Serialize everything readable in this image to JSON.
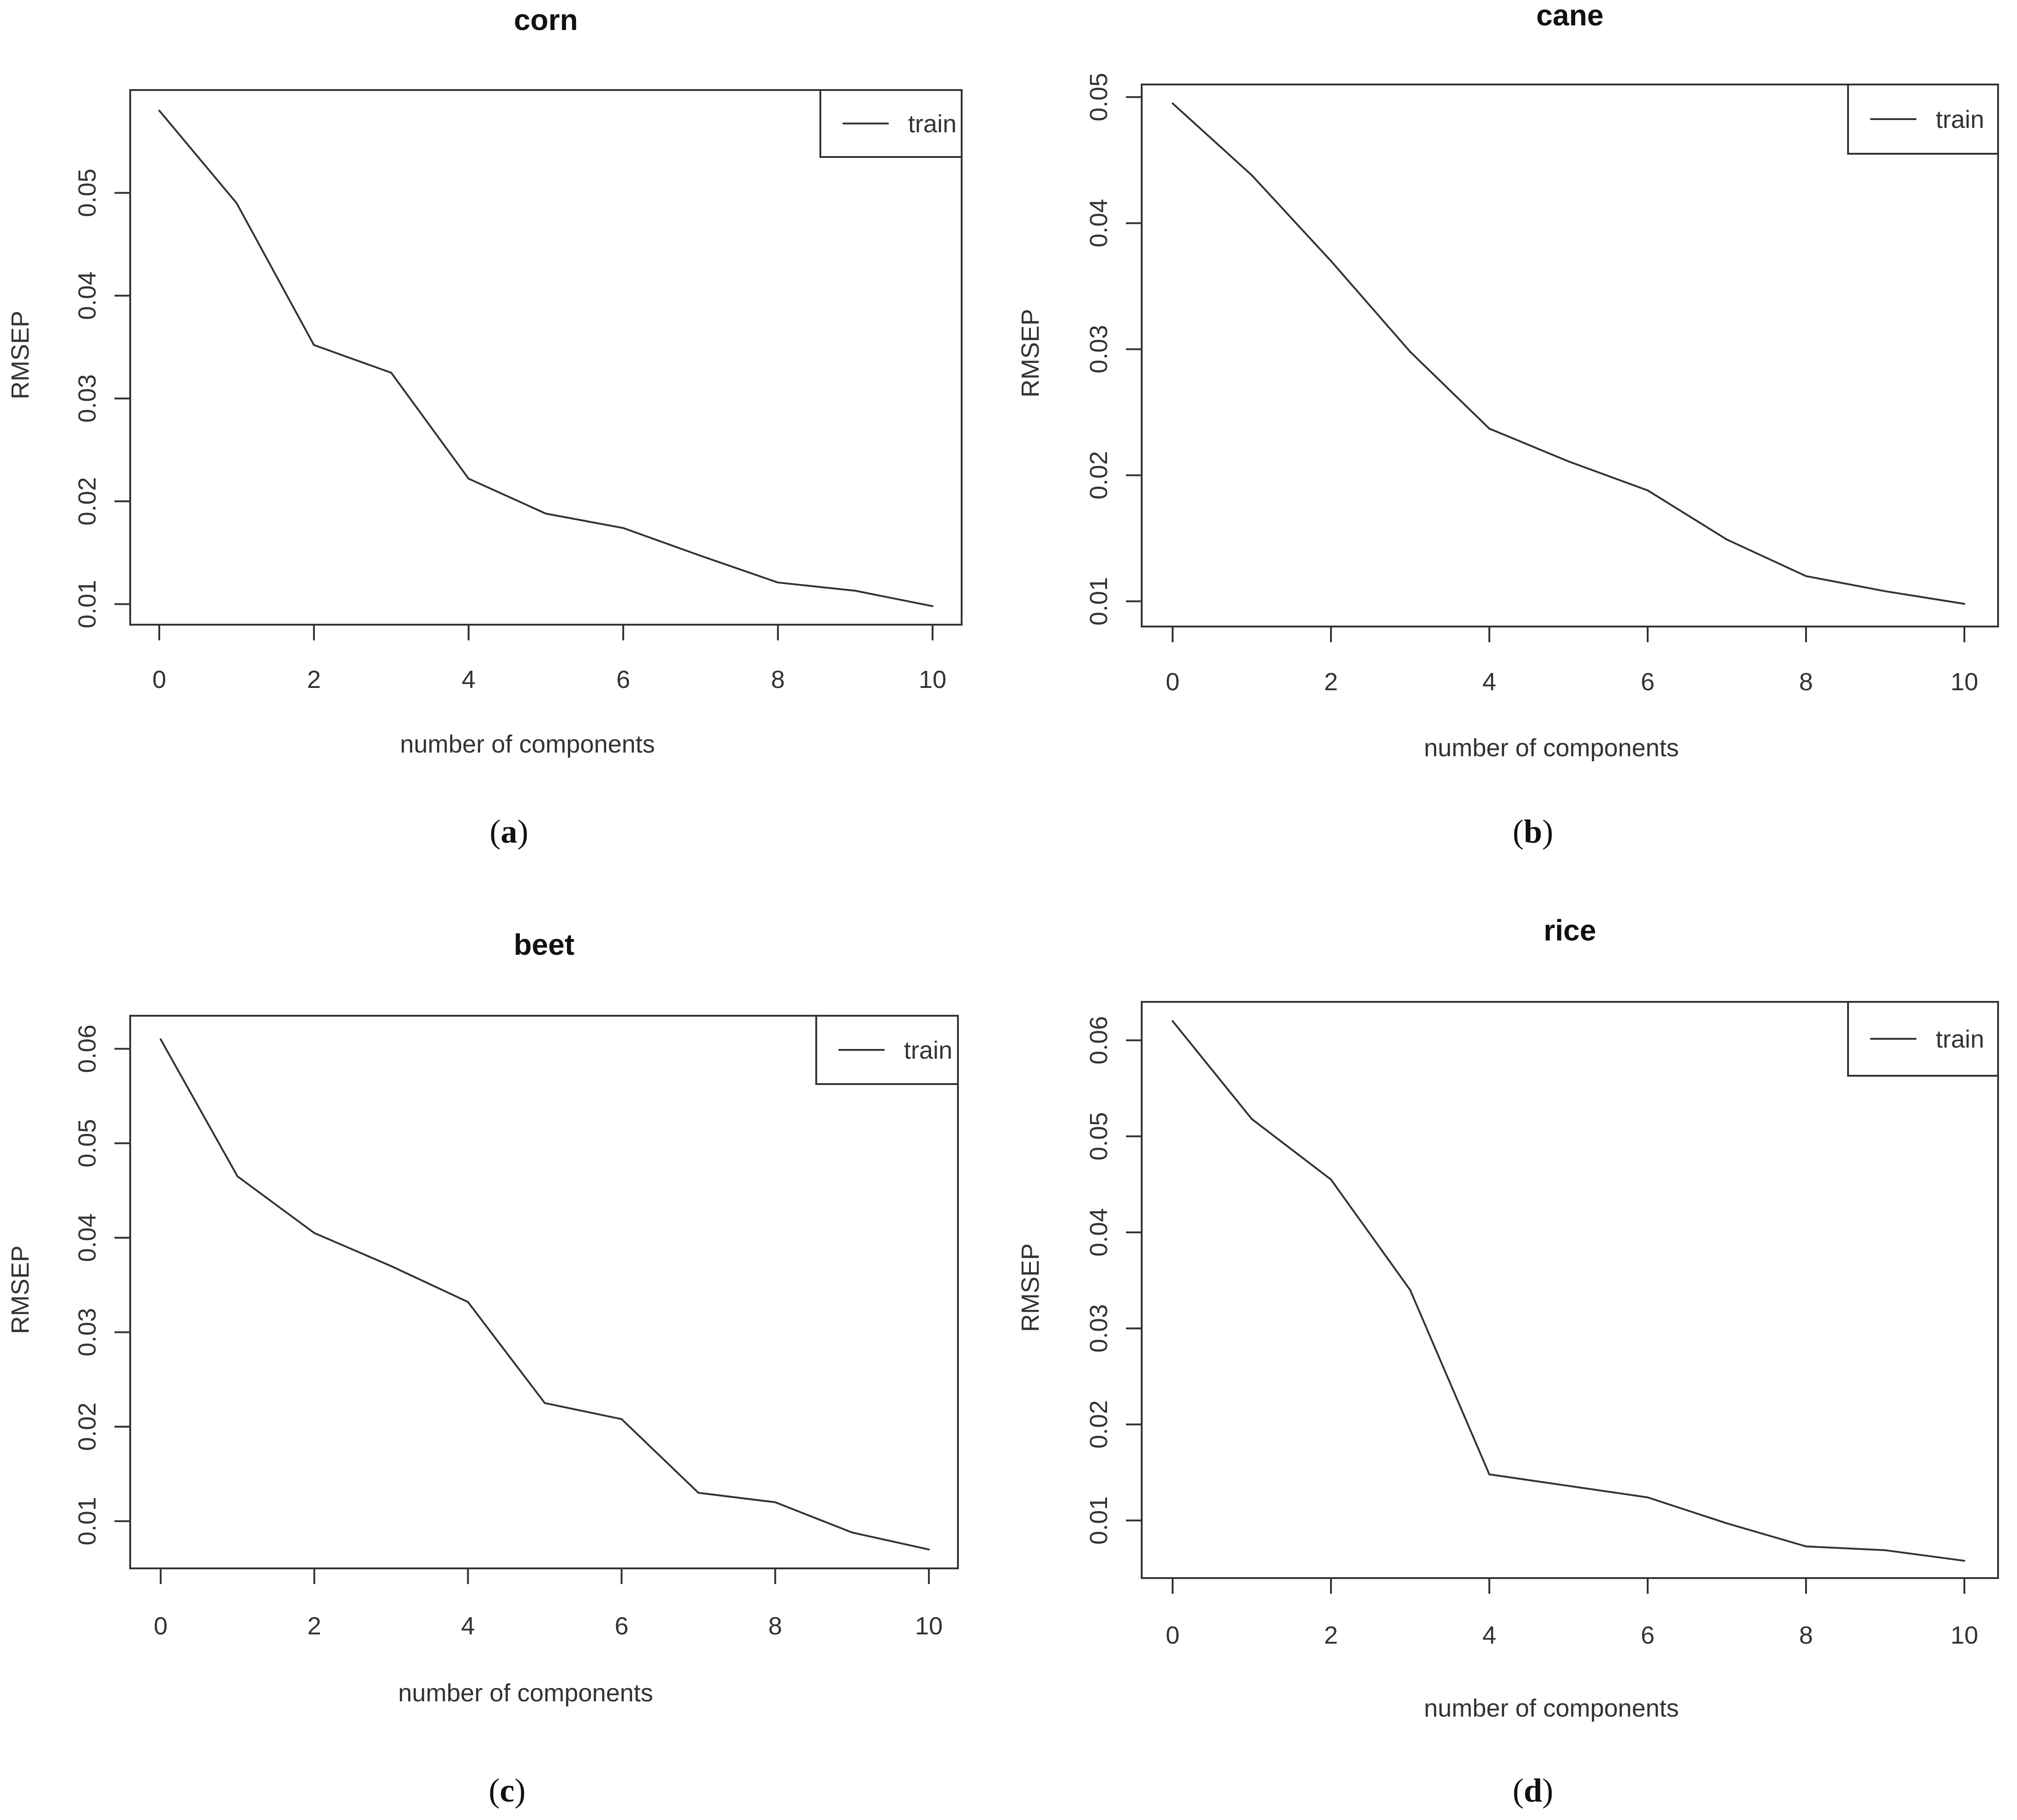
{
  "chart_data": [
    {
      "type": "line",
      "title": "corn",
      "xlabel": "number of components",
      "ylabel": "RMSEP",
      "caption": "a",
      "xlim": [
        0,
        10
      ],
      "ylim": [
        0.008,
        0.06
      ],
      "xticks": [
        0,
        2,
        4,
        6,
        8,
        10
      ],
      "xtick_labels": [
        "0",
        "2",
        "4",
        "6",
        "8",
        "10"
      ],
      "yticks": [
        0.01,
        0.02,
        0.03,
        0.04,
        0.05
      ],
      "ytick_labels": [
        "0.01",
        "0.02",
        "0.03",
        "0.04",
        "0.05"
      ],
      "legend": {
        "position": "top-right",
        "entries": [
          "train"
        ]
      },
      "series": [
        {
          "name": "train",
          "x": [
            0,
            1,
            2,
            3,
            4,
            5,
            6,
            7,
            8,
            9,
            10
          ],
          "values": [
            0.058,
            0.049,
            0.0352,
            0.0325,
            0.0222,
            0.0188,
            0.0174,
            0.0147,
            0.0121,
            0.0113,
            0.0098
          ]
        }
      ]
    },
    {
      "type": "line",
      "title": "cane",
      "xlabel": "number of components",
      "ylabel": "RMSEP",
      "caption": "b",
      "xlim": [
        0,
        10
      ],
      "ylim": [
        0.008,
        0.051
      ],
      "xticks": [
        0,
        2,
        4,
        6,
        8,
        10
      ],
      "xtick_labels": [
        "0",
        "2",
        "4",
        "6",
        "8",
        "10"
      ],
      "yticks": [
        0.01,
        0.02,
        0.03,
        0.04,
        0.05
      ],
      "ytick_labels": [
        "0.01",
        "0.02",
        "0.03",
        "0.04",
        "0.05"
      ],
      "legend": {
        "position": "top-right",
        "entries": [
          "train"
        ]
      },
      "series": [
        {
          "name": "train",
          "x": [
            0,
            1,
            2,
            3,
            4,
            5,
            6,
            7,
            8,
            9,
            10
          ],
          "values": [
            0.0495,
            0.0438,
            0.037,
            0.0298,
            0.0237,
            0.0211,
            0.0188,
            0.0149,
            0.012,
            0.0108,
            0.0098
          ]
        }
      ]
    },
    {
      "type": "line",
      "title": "beet",
      "xlabel": "number of components",
      "ylabel": "RMSEP",
      "caption": "c",
      "xlim": [
        0,
        10
      ],
      "ylim": [
        0.005,
        0.0635
      ],
      "xticks": [
        0,
        2,
        4,
        6,
        8,
        10
      ],
      "xtick_labels": [
        "0",
        "2",
        "4",
        "6",
        "8",
        "10"
      ],
      "yticks": [
        0.01,
        0.02,
        0.03,
        0.04,
        0.05,
        0.06
      ],
      "ytick_labels": [
        "0.01",
        "0.02",
        "0.03",
        "0.04",
        "0.05",
        "0.06"
      ],
      "legend": {
        "position": "top-right",
        "entries": [
          "train"
        ]
      },
      "series": [
        {
          "name": "train",
          "x": [
            0,
            1,
            2,
            3,
            4,
            5,
            6,
            7,
            8,
            9,
            10
          ],
          "values": [
            0.061,
            0.0465,
            0.0405,
            0.037,
            0.0332,
            0.0225,
            0.0208,
            0.013,
            0.012,
            0.0088,
            0.007
          ]
        }
      ]
    },
    {
      "type": "line",
      "title": "rice",
      "xlabel": "number of components",
      "ylabel": "RMSEP",
      "caption": "d",
      "xlim": [
        0,
        10
      ],
      "ylim": [
        0.004,
        0.064
      ],
      "xticks": [
        0,
        2,
        4,
        6,
        8,
        10
      ],
      "xtick_labels": [
        "0",
        "2",
        "4",
        "6",
        "8",
        "10"
      ],
      "yticks": [
        0.01,
        0.02,
        0.03,
        0.04,
        0.05,
        0.06
      ],
      "ytick_labels": [
        "0.01",
        "0.02",
        "0.03",
        "0.04",
        "0.05",
        "0.06"
      ],
      "legend": {
        "position": "top-right",
        "entries": [
          "train"
        ]
      },
      "series": [
        {
          "name": "train",
          "x": [
            0,
            1,
            2,
            3,
            4,
            5,
            6,
            7,
            8,
            9,
            10
          ],
          "values": [
            0.062,
            0.0518,
            0.0455,
            0.034,
            0.0148,
            0.0136,
            0.0124,
            0.0097,
            0.0073,
            0.0069,
            0.0058
          ]
        }
      ]
    }
  ],
  "colors": {
    "background": "#ffffff",
    "line": "#333333",
    "text": "#333333"
  }
}
